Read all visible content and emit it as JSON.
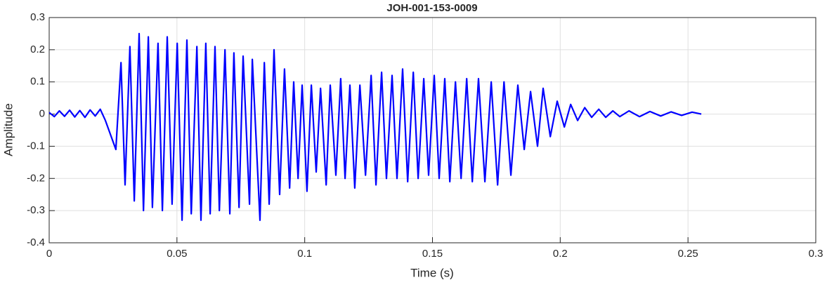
{
  "chart_data": {
    "type": "line",
    "title": "JOH-001-153-0009",
    "xlabel": "Time (s)",
    "ylabel": "Amplitude",
    "x": [
      0,
      0.002,
      0.004,
      0.006,
      0.008,
      0.01,
      0.012,
      0.014,
      0.016,
      0.018,
      0.02,
      0.022,
      0.0261,
      0.0281,
      0.0297,
      0.0316,
      0.0333,
      0.0352,
      0.0369,
      0.0388,
      0.0404,
      0.0426,
      0.0443,
      0.0462,
      0.0481,
      0.0501,
      0.052,
      0.0539,
      0.0556,
      0.0578,
      0.0594,
      0.0613,
      0.063,
      0.0649,
      0.0666,
      0.0688,
      0.0707,
      0.0723,
      0.0743,
      0.0759,
      0.0784,
      0.0795,
      0.0825,
      0.0842,
      0.0861,
      0.088,
      0.0902,
      0.0921,
      0.0941,
      0.0957,
      0.0974,
      0.099,
      0.1009,
      0.1026,
      0.1045,
      0.1062,
      0.1084,
      0.11,
      0.1122,
      0.1141,
      0.1158,
      0.1177,
      0.1196,
      0.1216,
      0.1238,
      0.126,
      0.1279,
      0.1301,
      0.132,
      0.1342,
      0.1361,
      0.1383,
      0.1403,
      0.1425,
      0.1444,
      0.1466,
      0.1485,
      0.1507,
      0.1526,
      0.1548,
      0.1568,
      0.159,
      0.1612,
      0.1634,
      0.1656,
      0.168,
      0.1705,
      0.173,
      0.1755,
      0.178,
      0.1807,
      0.1834,
      0.1859,
      0.1884,
      0.1911,
      0.1933,
      0.1961,
      0.1988,
      0.2016,
      0.2041,
      0.2068,
      0.2096,
      0.2123,
      0.2151,
      0.2178,
      0.2206,
      0.2233,
      0.2269,
      0.231,
      0.2351,
      0.2393,
      0.2434,
      0.2475,
      0.2516,
      0.2552
    ],
    "series": [
      {
        "name": "Amplitude",
        "color": "#0000ff",
        "values": [
          0.005,
          -0.008,
          0.01,
          -0.007,
          0.012,
          -0.009,
          0.011,
          -0.01,
          0.013,
          -0.006,
          0.015,
          -0.02,
          -0.11,
          0.16,
          -0.22,
          0.21,
          -0.27,
          0.25,
          -0.3,
          0.24,
          -0.29,
          0.22,
          -0.3,
          0.24,
          -0.28,
          0.22,
          -0.33,
          0.23,
          -0.31,
          0.21,
          -0.33,
          0.22,
          -0.31,
          0.21,
          -0.3,
          0.2,
          -0.31,
          0.19,
          -0.29,
          0.18,
          -0.28,
          0.17,
          -0.33,
          0.16,
          -0.28,
          0.2,
          -0.25,
          0.14,
          -0.23,
          0.1,
          -0.2,
          0.09,
          -0.24,
          0.09,
          -0.18,
          0.08,
          -0.22,
          0.09,
          -0.19,
          0.11,
          -0.2,
          0.09,
          -0.23,
          0.09,
          -0.19,
          0.12,
          -0.22,
          0.13,
          -0.2,
          0.12,
          -0.2,
          0.14,
          -0.21,
          0.13,
          -0.2,
          0.11,
          -0.19,
          0.12,
          -0.2,
          0.11,
          -0.21,
          0.1,
          -0.2,
          0.11,
          -0.21,
          0.11,
          -0.21,
          0.1,
          -0.22,
          0.1,
          -0.19,
          0.09,
          -0.11,
          0.07,
          -0.1,
          0.08,
          -0.07,
          0.04,
          -0.04,
          0.03,
          -0.02,
          0.02,
          -0.01,
          0.015,
          -0.01,
          0.01,
          -0.008,
          0.01,
          -0.008,
          0.008,
          -0.006,
          0.007,
          -0.004,
          0.006,
          0.0
        ]
      }
    ],
    "xlim": [
      0,
      0.3
    ],
    "xticks": [
      0,
      0.05,
      0.1,
      0.15,
      0.2,
      0.25,
      0.3
    ],
    "ylim": [
      -0.4,
      0.3
    ],
    "yticks": [
      -0.4,
      -0.3,
      -0.2,
      -0.1,
      0,
      0.1,
      0.2,
      0.3
    ],
    "grid": true
  }
}
